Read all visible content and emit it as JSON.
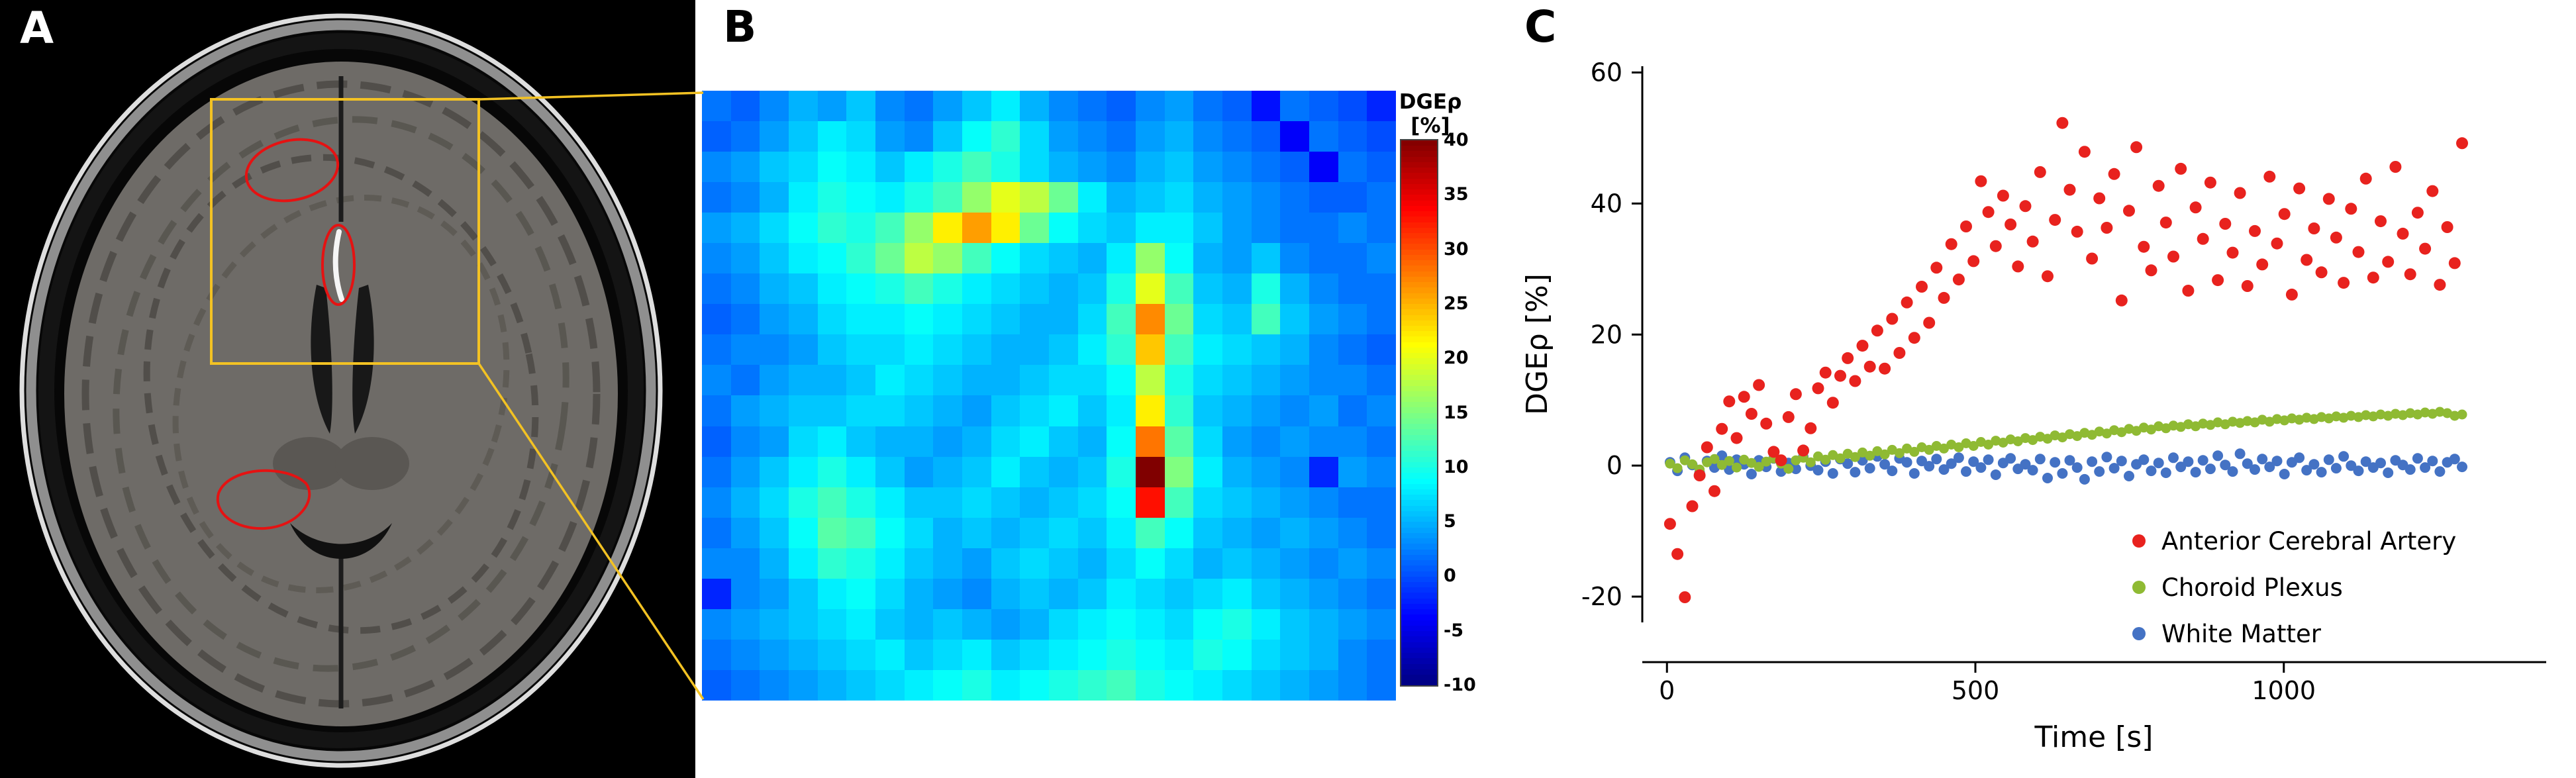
{
  "figure": {
    "panel_a_label": "A",
    "panel_b_label": "B",
    "panel_c_label": "C"
  },
  "colors": {
    "roi": "#e51212",
    "highlight_box": "#f3c223",
    "axis": "#000000"
  },
  "colorbar": {
    "title": "DGEρ",
    "unit": "[%]",
    "max": 40,
    "min": -10,
    "ticks": [
      40,
      35,
      30,
      25,
      20,
      15,
      10,
      5,
      0,
      -5,
      -10
    ]
  },
  "chart_data": [
    {
      "type": "heatmap",
      "colormap": "jet",
      "value_range": [
        -10,
        40
      ],
      "values": [
        [
          2,
          1,
          3,
          5,
          4,
          6,
          3,
          2,
          4,
          6,
          8,
          5,
          3,
          2,
          1,
          3,
          4,
          2,
          1,
          -3,
          2,
          1,
          0,
          -2
        ],
        [
          1,
          2,
          4,
          6,
          8,
          7,
          4,
          3,
          6,
          9,
          11,
          7,
          4,
          3,
          2,
          4,
          5,
          3,
          2,
          1,
          -4,
          2,
          1,
          0
        ],
        [
          3,
          4,
          6,
          7,
          9,
          8,
          6,
          8,
          10,
          12,
          10,
          7,
          5,
          4,
          3,
          5,
          6,
          4,
          3,
          2,
          1,
          -4,
          2,
          1
        ],
        [
          2,
          3,
          5,
          8,
          10,
          9,
          8,
          10,
          12,
          16,
          20,
          18,
          14,
          8,
          5,
          6,
          7,
          5,
          4,
          3,
          2,
          1,
          1,
          2
        ],
        [
          4,
          5,
          7,
          9,
          11,
          10,
          12,
          16,
          22,
          26,
          22,
          14,
          9,
          7,
          6,
          8,
          8,
          6,
          4,
          3,
          2,
          2,
          3,
          2
        ],
        [
          3,
          4,
          6,
          8,
          9,
          11,
          14,
          18,
          16,
          12,
          9,
          7,
          6,
          5,
          8,
          16,
          9,
          5,
          4,
          6,
          3,
          2,
          2,
          3
        ],
        [
          2,
          3,
          5,
          6,
          8,
          9,
          10,
          12,
          10,
          8,
          7,
          6,
          5,
          6,
          10,
          20,
          12,
          6,
          5,
          10,
          5,
          3,
          2,
          2
        ],
        [
          1,
          2,
          4,
          5,
          7,
          8,
          8,
          9,
          8,
          7,
          6,
          5,
          5,
          7,
          12,
          27,
          14,
          7,
          6,
          12,
          6,
          4,
          3,
          2
        ],
        [
          2,
          3,
          3,
          4,
          6,
          7,
          7,
          8,
          7,
          6,
          5,
          5,
          6,
          8,
          11,
          24,
          12,
          8,
          7,
          6,
          5,
          3,
          2,
          1
        ],
        [
          3,
          2,
          4,
          5,
          5,
          6,
          8,
          7,
          6,
          5,
          5,
          6,
          7,
          7,
          9,
          18,
          10,
          7,
          6,
          5,
          4,
          3,
          3,
          2
        ],
        [
          2,
          4,
          5,
          6,
          6,
          7,
          7,
          6,
          5,
          4,
          6,
          7,
          8,
          6,
          8,
          22,
          11,
          6,
          5,
          4,
          3,
          4,
          2,
          3
        ],
        [
          1,
          3,
          4,
          7,
          8,
          6,
          5,
          5,
          4,
          5,
          7,
          8,
          6,
          5,
          9,
          28,
          13,
          7,
          4,
          3,
          4,
          3,
          3,
          2
        ],
        [
          2,
          4,
          6,
          8,
          10,
          8,
          6,
          4,
          5,
          6,
          8,
          6,
          5,
          6,
          10,
          40,
          15,
          8,
          5,
          4,
          3,
          -2,
          4,
          3
        ],
        [
          3,
          5,
          7,
          10,
          12,
          10,
          8,
          6,
          6,
          7,
          6,
          5,
          6,
          7,
          9,
          33,
          12,
          7,
          6,
          5,
          4,
          3,
          2,
          2
        ],
        [
          2,
          4,
          6,
          9,
          13,
          12,
          9,
          7,
          5,
          6,
          5,
          6,
          7,
          6,
          8,
          12,
          9,
          6,
          5,
          4,
          5,
          4,
          3,
          2
        ],
        [
          3,
          3,
          5,
          8,
          11,
          10,
          8,
          6,
          5,
          4,
          6,
          7,
          6,
          5,
          7,
          9,
          7,
          5,
          6,
          5,
          4,
          3,
          4,
          3
        ],
        [
          -2,
          3,
          4,
          6,
          8,
          9,
          7,
          5,
          4,
          3,
          5,
          6,
          5,
          6,
          8,
          7,
          6,
          7,
          8,
          6,
          5,
          4,
          3,
          2
        ],
        [
          3,
          4,
          5,
          6,
          7,
          8,
          6,
          5,
          6,
          5,
          4,
          5,
          7,
          8,
          9,
          8,
          7,
          9,
          10,
          8,
          6,
          5,
          4,
          3
        ],
        [
          2,
          3,
          4,
          5,
          6,
          7,
          8,
          6,
          7,
          8,
          6,
          7,
          8,
          9,
          10,
          9,
          8,
          10,
          9,
          7,
          6,
          5,
          3,
          2
        ],
        [
          1,
          2,
          3,
          4,
          5,
          6,
          7,
          8,
          9,
          10,
          8,
          9,
          10,
          11,
          12,
          10,
          9,
          8,
          7,
          6,
          5,
          4,
          3,
          2
        ]
      ]
    },
    {
      "type": "scatter",
      "xlabel": "Time [s]",
      "ylabel": "DGEρ [%]",
      "xlim": [
        -40,
        1420
      ],
      "ylim": [
        -30,
        65
      ],
      "xticks": [
        0,
        500,
        1000
      ],
      "yticks": [
        -20,
        0,
        20,
        40,
        60
      ],
      "legend_position": "lower right",
      "series": [
        {
          "name": "Anterior Cerebral Artery",
          "color": "#e8221e",
          "t_start": 5,
          "t_step": 12,
          "values": [
            -8.9,
            -13.5,
            -20.1,
            -6.2,
            -1.5,
            2.8,
            -3.9,
            5.6,
            9.8,
            4.2,
            10.5,
            7.9,
            12.3,
            6.4,
            2.1,
            0.8,
            7.4,
            10.9,
            2.3,
            5.7,
            11.8,
            14.2,
            9.6,
            13.7,
            16.4,
            12.9,
            18.3,
            15.1,
            20.6,
            14.8,
            22.4,
            17.2,
            24.9,
            19.5,
            27.3,
            21.8,
            30.2,
            25.6,
            33.8,
            28.4,
            36.5,
            31.2,
            43.4,
            38.7,
            33.5,
            41.2,
            36.8,
            30.4,
            39.6,
            34.2,
            44.8,
            28.9,
            37.5,
            52.3,
            42.1,
            35.7,
            47.9,
            31.6,
            40.8,
            36.3,
            44.5,
            25.2,
            38.9,
            48.6,
            33.4,
            29.8,
            42.7,
            37.1,
            31.9,
            45.3,
            26.7,
            39.4,
            34.6,
            43.2,
            28.3,
            36.9,
            32.5,
            41.6,
            27.4,
            35.8,
            30.7,
            44.1,
            33.9,
            38.4,
            26.1,
            42.3,
            31.4,
            36.2,
            29.5,
            40.7,
            34.8,
            27.9,
            39.2,
            32.6,
            43.8,
            28.7,
            37.3,
            31.1,
            45.6,
            35.4,
            29.2,
            38.6,
            33.1,
            41.9,
            27.6,
            36.4,
            30.9,
            49.2
          ]
        },
        {
          "name": "Choroid Plexus",
          "color": "#8fba33",
          "t_start": 5,
          "t_step": 12,
          "values": [
            0.3,
            -0.4,
            0.8,
            0.2,
            -0.6,
            0.5,
            1.0,
            0.1,
            0.7,
            -0.3,
            0.9,
            0.4,
            -0.2,
            0.6,
            1.1,
            0.3,
            -0.5,
            0.8,
            1.2,
            0.5,
            1.4,
            0.9,
            1.6,
            1.1,
            1.8,
            1.3,
            2.0,
            1.5,
            2.2,
            1.7,
            2.4,
            1.9,
            2.6,
            2.1,
            2.8,
            2.4,
            3.0,
            2.6,
            3.2,
            2.8,
            3.4,
            3.0,
            3.6,
            3.2,
            3.8,
            3.5,
            4.0,
            3.7,
            4.2,
            3.9,
            4.4,
            4.1,
            4.6,
            4.3,
            4.8,
            4.5,
            5.0,
            4.7,
            5.2,
            4.9,
            5.4,
            5.1,
            5.6,
            5.3,
            5.8,
            5.5,
            6.0,
            5.7,
            6.1,
            5.9,
            6.3,
            6.0,
            6.4,
            6.2,
            6.6,
            6.3,
            6.7,
            6.5,
            6.8,
            6.6,
            7.0,
            6.7,
            7.1,
            6.9,
            7.2,
            7.0,
            7.3,
            7.1,
            7.4,
            7.2,
            7.5,
            7.3,
            7.6,
            7.4,
            7.7,
            7.5,
            7.8,
            7.6,
            7.9,
            7.7,
            8.0,
            7.8,
            8.1,
            7.9,
            8.2,
            8.0,
            7.6,
            7.8
          ]
        },
        {
          "name": "White Matter",
          "color": "#4472c4",
          "t_start": 5,
          "t_step": 12,
          "values": [
            0.5,
            -0.8,
            1.2,
            0.1,
            -1.1,
            0.7,
            -0.3,
            1.5,
            -0.6,
            0.9,
            0.2,
            -1.3,
            0.8,
            -0.2,
            1.1,
            -0.9,
            0.4,
            -0.5,
            1.3,
            0.0,
            -0.7,
            0.6,
            -1.2,
            1.0,
            0.3,
            -1.0,
            0.8,
            -0.4,
            1.4,
            0.2,
            -0.8,
            1.1,
            0.5,
            -1.2,
            0.7,
            -0.1,
            1.0,
            -0.6,
            0.3,
            1.2,
            -0.9,
            0.6,
            -0.3,
            0.9,
            -1.4,
            0.4,
            1.1,
            -0.5,
            0.2,
            -0.7,
            1.0,
            -1.9,
            0.5,
            -1.2,
            0.8,
            -0.3,
            -2.1,
            0.6,
            -0.9,
            1.3,
            -0.4,
            0.7,
            -1.6,
            0.2,
            0.9,
            -0.8,
            0.4,
            -1.1,
            1.2,
            -0.2,
            0.6,
            -1.0,
            0.8,
            -0.5,
            1.5,
            0.1,
            -0.9,
            1.8,
            0.3,
            -0.6,
            1.0,
            -0.2,
            0.7,
            -1.3,
            0.5,
            1.2,
            -0.7,
            0.2,
            -1.0,
            0.9,
            -0.4,
            1.4,
            0.0,
            -0.8,
            0.6,
            -0.3,
            0.4,
            -1.1,
            0.8,
            0.1,
            -0.6,
            1.1,
            -0.3,
            0.7,
            -0.9,
            0.5,
            1.0,
            -0.2
          ]
        }
      ]
    }
  ]
}
